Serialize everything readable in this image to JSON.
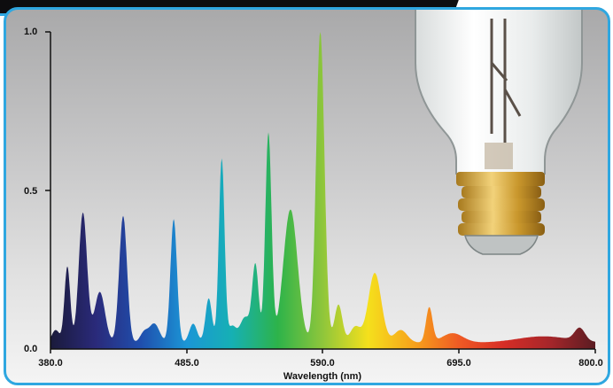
{
  "chart_data": {
    "type": "area",
    "xlabel": "Wavelength (nm)",
    "ylabel": "",
    "xlim": [
      380.0,
      800.0
    ],
    "ylim": [
      0.0,
      1.0
    ],
    "x_ticks": [
      "380.0",
      "485.0",
      "590.0",
      "695.0",
      "800.0"
    ],
    "y_ticks": [
      "0.0",
      "0.5",
      "1.0"
    ],
    "grid": false,
    "peaks": [
      {
        "x": 384,
        "y": 0.04,
        "w": 3
      },
      {
        "x": 393,
        "y": 0.24,
        "w": 2.2
      },
      {
        "x": 405,
        "y": 0.41,
        "w": 3.2
      },
      {
        "x": 418,
        "y": 0.16,
        "w": 4
      },
      {
        "x": 436,
        "y": 0.4,
        "w": 3
      },
      {
        "x": 452,
        "y": 0.03,
        "w": 3
      },
      {
        "x": 460,
        "y": 0.06,
        "w": 4
      },
      {
        "x": 475,
        "y": 0.39,
        "w": 2.5
      },
      {
        "x": 490,
        "y": 0.06,
        "w": 3
      },
      {
        "x": 502,
        "y": 0.14,
        "w": 2.5
      },
      {
        "x": 512,
        "y": 0.58,
        "w": 2.2
      },
      {
        "x": 520,
        "y": 0.05,
        "w": 3
      },
      {
        "x": 530,
        "y": 0.08,
        "w": 4
      },
      {
        "x": 538,
        "y": 0.24,
        "w": 2.5
      },
      {
        "x": 548,
        "y": 0.66,
        "w": 2.4
      },
      {
        "x": 565,
        "y": 0.42,
        "w": 5.5
      },
      {
        "x": 588,
        "y": 0.98,
        "w": 3.2
      },
      {
        "x": 602,
        "y": 0.12,
        "w": 3
      },
      {
        "x": 615,
        "y": 0.05,
        "w": 4
      },
      {
        "x": 630,
        "y": 0.22,
        "w": 5
      },
      {
        "x": 650,
        "y": 0.04,
        "w": 5
      },
      {
        "x": 672,
        "y": 0.11,
        "w": 2.5
      },
      {
        "x": 690,
        "y": 0.03,
        "w": 8
      },
      {
        "x": 760,
        "y": 0.02,
        "w": 20
      },
      {
        "x": 788,
        "y": 0.04,
        "w": 4
      }
    ],
    "baseline": 0.02,
    "spectrum_colors": [
      "#1a1a3a",
      "#2a2a7a",
      "#1f4fae",
      "#1b96d6",
      "#16b0b4",
      "#2db34a",
      "#8fc63b",
      "#f5e01c",
      "#f7a21b",
      "#ef5a24",
      "#d62d26",
      "#a6262a",
      "#5a1c22"
    ]
  }
}
